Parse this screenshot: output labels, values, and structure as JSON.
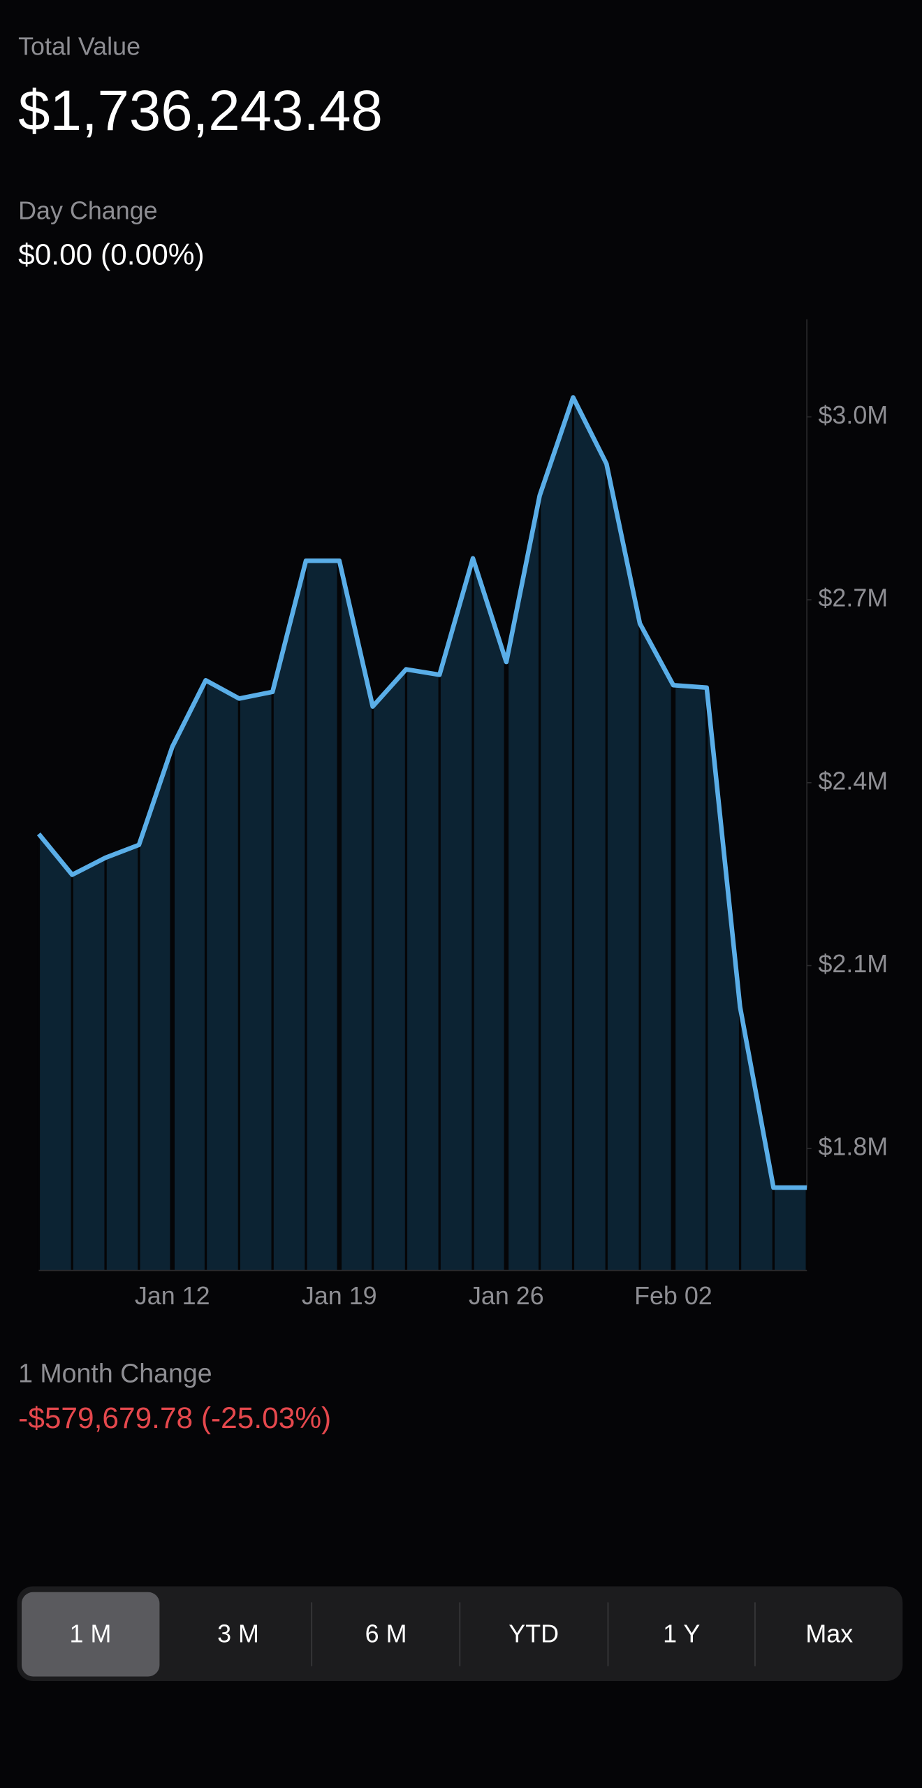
{
  "header": {
    "total_label": "Total Value",
    "total_value": "$1,736,243.48",
    "day_change_label": "Day Change",
    "day_change_value": "$0.00 (0.00%)"
  },
  "chart_data": {
    "type": "area",
    "categories": [
      null,
      null,
      null,
      null,
      "Jan 12",
      null,
      null,
      null,
      null,
      "Jan 19",
      null,
      null,
      null,
      null,
      "Jan 26",
      null,
      null,
      null,
      null,
      "Feb 02",
      null,
      null,
      null,
      null
    ],
    "values": [
      2316000,
      2249000,
      2277000,
      2298000,
      2459000,
      2568000,
      2538000,
      2549000,
      2764000,
      2764000,
      2525000,
      2586000,
      2577000,
      2768000,
      2598000,
      2871000,
      3032000,
      2923000,
      2661000,
      2560000,
      2556000,
      2032000,
      1736000,
      1736000
    ],
    "color": "#5aaee8",
    "fill_color": "#0c2333",
    "ylim": [
      1600000,
      3160000
    ],
    "yticks": [
      {
        "value": 1800000,
        "label": "$1.8M"
      },
      {
        "value": 2100000,
        "label": "$2.1M"
      },
      {
        "value": 2400000,
        "label": "$2.4M"
      },
      {
        "value": 2700000,
        "label": "$2.7M"
      },
      {
        "value": 3000000,
        "label": "$3.0M"
      }
    ]
  },
  "summary": {
    "label": "1 Month Change",
    "value": "-$579,679.78 (-25.03%)"
  },
  "range_selector": {
    "options": [
      "1 M",
      "3 M",
      "6 M",
      "YTD",
      "1 Y",
      "Max"
    ],
    "selected_index": 0
  }
}
